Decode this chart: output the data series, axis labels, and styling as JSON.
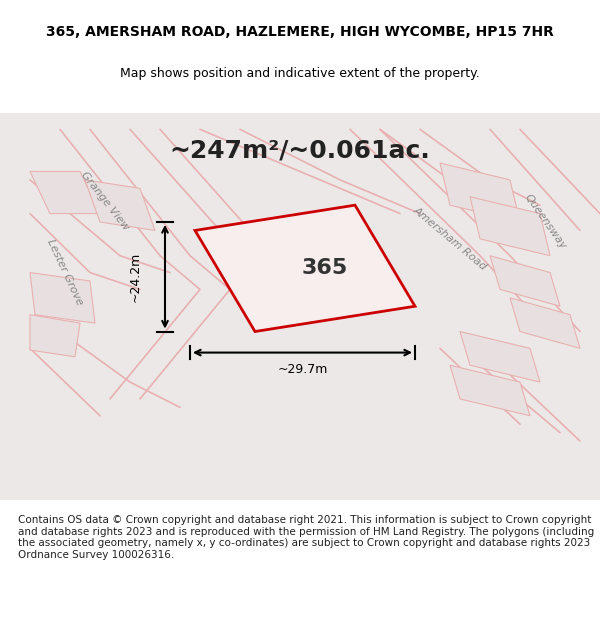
{
  "title_line1": "365, AMERSHAM ROAD, HAZLEMERE, HIGH WYCOMBE, HP15 7HR",
  "title_line2": "Map shows position and indicative extent of the property.",
  "area_text": "~247m²/~0.061ac.",
  "plot_number": "365",
  "dim_width": "~29.7m",
  "dim_height": "~24.2m",
  "footer_text": "Contains OS data © Crown copyright and database right 2021. This information is subject to Crown copyright and database rights 2023 and is reproduced with the permission of HM Land Registry. The polygons (including the associated geometry, namely x, y co-ordinates) are subject to Crown copyright and database rights 2023 Ordnance Survey 100026316.",
  "bg_color": "#f5f0f0",
  "map_bg": "#f0eded",
  "plot_color_fill": "#f5e8e8",
  "plot_color_edge": "#cc0000",
  "road_label1": "Grange View",
  "road_label2": "Lester Grove",
  "road_label3": "Amersham Road",
  "road_label4": "Queensway",
  "title_fontsize": 10,
  "subtitle_fontsize": 9,
  "area_fontsize": 18,
  "footer_fontsize": 7.5
}
